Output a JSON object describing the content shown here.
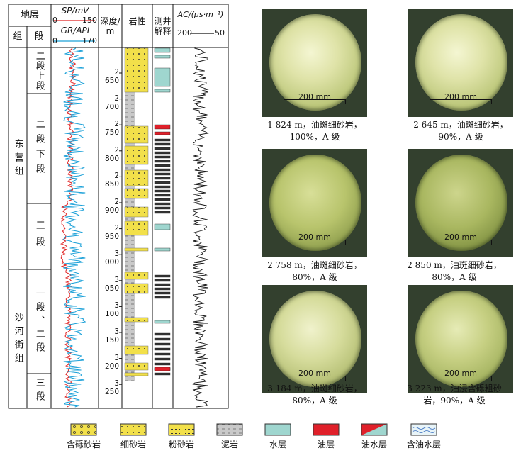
{
  "log": {
    "hdr_formation": "地层",
    "hdr_group": "组",
    "hdr_section": "段",
    "sp_label": "SP/mV",
    "sp_min": "0",
    "sp_max": "150",
    "gr_label": "GR/API",
    "gr_min": "0",
    "gr_max": "170",
    "depth_label": "深度/\nm",
    "lith_label": "岩性",
    "interp_label": "测井\n解释",
    "ac_label": "AC/(μs·m⁻¹)",
    "ac_min": "200",
    "ac_max": "50",
    "groups": [
      "东营组",
      "沙河街组"
    ],
    "sections": [
      "二段上段",
      "二段下段",
      "三段",
      "一段、二段",
      "三段"
    ],
    "depth_ticks": [
      "2 650",
      "2 700",
      "2 750",
      "2 800",
      "2 850",
      "2 900",
      "2 950",
      "3 000",
      "3 050",
      "3 100",
      "3 150",
      "3 200",
      "3 250"
    ]
  },
  "cores": [
    {
      "scale": "200 mm",
      "caption1": "1 824 m，油斑细砂岩，",
      "caption2": "100%，A 级"
    },
    {
      "scale": "200 mm",
      "caption1": "2 645 m，油斑细砂岩，",
      "caption2": "90%，A 级"
    },
    {
      "scale": "200 mm",
      "caption1": "2 758 m，油斑细砂岩，",
      "caption2": "80%，A 级"
    },
    {
      "scale": "200 mm",
      "caption1": "2 850 m，油斑细砂岩，",
      "caption2": "80%，A 级"
    },
    {
      "scale": "200 mm",
      "caption1": "3 184 m，油斑细砂岩，",
      "caption2": "80%，A 级"
    },
    {
      "scale": "200 mm",
      "caption1": "3 223 m，油浸含砾粗砂",
      "caption2": "岩，90%，A 级"
    }
  ],
  "legend": [
    "含砾砂岩",
    "细砂岩",
    "粉砂岩",
    "泥岩",
    "水层",
    "油层",
    "油水层",
    "含油水层"
  ],
  "colors": {
    "sand": "#f2e04a",
    "mud": "#c9c9c9",
    "water": "#9fd6cf",
    "oil": "#e0202a",
    "gr": "#1aa0d8",
    "sp": "#e02020"
  }
}
